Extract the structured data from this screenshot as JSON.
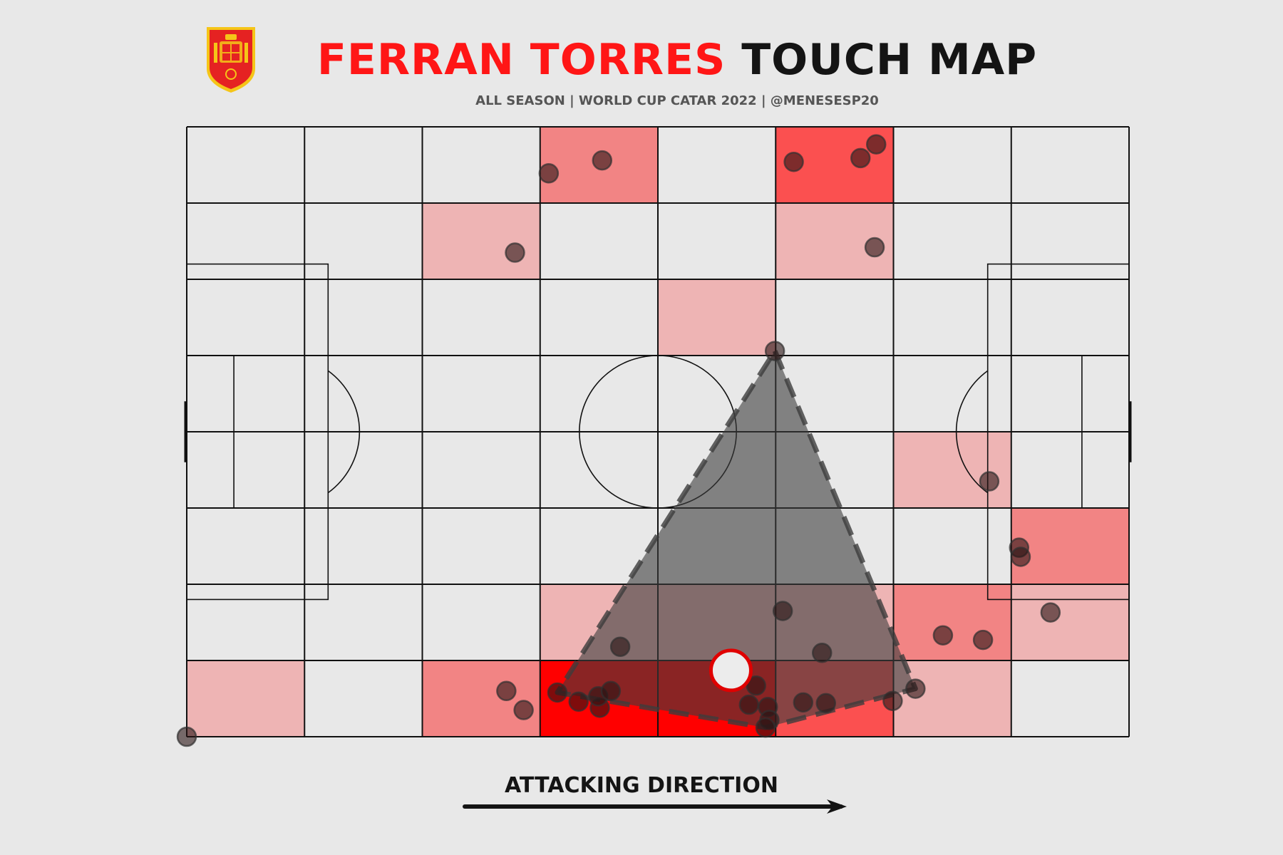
{
  "title": {
    "name": "FERRAN TORRES",
    "rest": "TOUCH MAP"
  },
  "subtitle": "ALL SEASON | WORLD CUP CATAR 2022 | @MENESESP20",
  "direction_label": "ATTACKING DIRECTION",
  "colors": {
    "background": "#e8e8e8",
    "accent": "#ff1616",
    "heat_low": "#eeb4b4",
    "heat_mid": "#f28484",
    "heat_high": "#fb5050",
    "heat_max": "#ff0000",
    "hull": "#3c3c3c",
    "touch": "#2a1414",
    "centroid_fill": "#ececec",
    "centroid_edge": "#e00000"
  },
  "chart_data": {
    "type": "heatmap",
    "pitch": {
      "length": 120,
      "width": 80,
      "grid_cols": 8,
      "grid_rows": 8
    },
    "heatmap_cells": [
      {
        "col": 3,
        "row": 0,
        "count": 2
      },
      {
        "col": 5,
        "row": 0,
        "count": 3
      },
      {
        "col": 2,
        "row": 1,
        "count": 1
      },
      {
        "col": 5,
        "row": 1,
        "count": 1
      },
      {
        "col": 4,
        "row": 2,
        "count": 1
      },
      {
        "col": 6,
        "row": 4,
        "count": 1
      },
      {
        "col": 7,
        "row": 5,
        "count": 2
      },
      {
        "col": 3,
        "row": 6,
        "count": 1
      },
      {
        "col": 4,
        "row": 6,
        "count": 1
      },
      {
        "col": 5,
        "row": 6,
        "count": 1
      },
      {
        "col": 6,
        "row": 6,
        "count": 2
      },
      {
        "col": 7,
        "row": 6,
        "count": 1
      },
      {
        "col": 0,
        "row": 7,
        "count": 1
      },
      {
        "col": 2,
        "row": 7,
        "count": 2
      },
      {
        "col": 3,
        "row": 7,
        "count": 5
      },
      {
        "col": 4,
        "row": 7,
        "count": 5
      },
      {
        "col": 5,
        "row": 7,
        "count": 3
      },
      {
        "col": 6,
        "row": 7,
        "count": 1
      }
    ],
    "touches": [
      [
        46.1,
        6.1
      ],
      [
        52.9,
        4.4
      ],
      [
        77.3,
        4.6
      ],
      [
        85.8,
        4.1
      ],
      [
        87.8,
        2.3
      ],
      [
        41.8,
        16.5
      ],
      [
        87.6,
        15.8
      ],
      [
        74.9,
        29.4
      ],
      [
        102.2,
        46.5
      ],
      [
        106.0,
        55.2
      ],
      [
        106.2,
        56.4
      ],
      [
        75.9,
        63.5
      ],
      [
        55.2,
        68.2
      ],
      [
        96.3,
        66.7
      ],
      [
        101.4,
        67.3
      ],
      [
        110.0,
        63.7
      ],
      [
        80.9,
        69.0
      ],
      [
        40.7,
        74.0
      ],
      [
        42.9,
        76.5
      ],
      [
        47.2,
        74.2
      ],
      [
        49.9,
        75.4
      ],
      [
        52.6,
        76.2
      ],
      [
        52.4,
        74.7
      ],
      [
        54.0,
        74.0
      ],
      [
        72.5,
        73.3
      ],
      [
        71.6,
        75.8
      ],
      [
        74.0,
        76.1
      ],
      [
        74.2,
        77.8
      ],
      [
        78.5,
        75.5
      ],
      [
        81.4,
        75.6
      ],
      [
        89.9,
        75.3
      ],
      [
        92.8,
        73.7
      ],
      [
        73.7,
        78.8
      ],
      [
        0.0,
        80.0
      ]
    ],
    "hull": [
      [
        74.9,
        29.4
      ],
      [
        92.8,
        73.7
      ],
      [
        73.7,
        78.8
      ],
      [
        47.2,
        74.2
      ]
    ],
    "centroid": [
      69.3,
      71.3
    ]
  }
}
